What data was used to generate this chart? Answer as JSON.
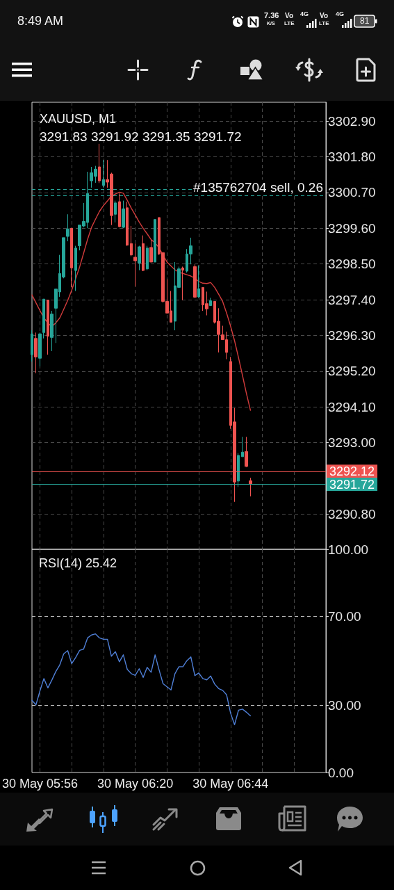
{
  "chart_data": [
    {
      "type": "candlestick",
      "title": "XAUUSD, M1",
      "subtitle": "3291.83 3291.92 3291.35 3291.72",
      "categories": [
        null,
        null,
        null,
        null,
        null,
        null,
        null,
        null,
        null,
        null,
        null,
        null,
        null,
        null,
        null,
        null,
        null,
        null,
        null,
        null,
        null,
        null,
        null,
        null,
        null,
        null,
        null,
        null,
        null,
        null,
        null,
        null,
        null,
        null,
        null,
        null,
        null,
        null,
        null,
        null,
        null,
        null,
        null,
        null,
        null,
        null,
        null,
        null,
        null,
        null,
        null,
        null,
        null,
        null,
        null,
        null,
        null,
        null,
        null,
        null,
        null,
        null,
        null,
        null,
        null,
        null,
        null,
        null,
        null,
        null,
        null,
        null,
        null,
        null,
        null
      ],
      "ohlc": [
        [
          3295.71,
          3296.46,
          3295.5,
          3296.35
        ],
        [
          3296.21,
          3296.39,
          3295.14,
          3295.64
        ],
        [
          3295.6,
          3296.39,
          3295.35,
          3296.35
        ],
        [
          3296.39,
          3297.42,
          3296.21,
          3297.42
        ],
        [
          3297.39,
          3297.39,
          3295.71,
          3296.28
        ],
        [
          3296.24,
          3297.06,
          3295.82,
          3296.96
        ],
        [
          3297.14,
          3297.73,
          3296.07,
          3297.73
        ],
        [
          3297.64,
          3298.78,
          3297.49,
          3298.21
        ],
        [
          3298.1,
          3299.31,
          3298.06,
          3299.31
        ],
        [
          3299.35,
          3300.03,
          3299.2,
          3299.58
        ],
        [
          3299.6,
          3299.6,
          3297.78,
          3298.38
        ],
        [
          3298.3,
          3299.06,
          3297.67,
          3298.99
        ],
        [
          3299.06,
          3299.7,
          3298.92,
          3299.7
        ],
        [
          3299.67,
          3300.38,
          3299.63,
          3299.81
        ],
        [
          3299.78,
          3301.34,
          3299.6,
          3300.67
        ],
        [
          3301.06,
          3301.49,
          3300.85,
          3301.31
        ],
        [
          3301.2,
          3301.52,
          3301.0,
          3301.42
        ],
        [
          3301.49,
          3302.2,
          3300.99,
          3301.06
        ],
        [
          3300.92,
          3301.7,
          3300.85,
          3301.1
        ],
        [
          3301.1,
          3301.7,
          3300.85,
          3301.02
        ],
        [
          3301.27,
          3301.31,
          3299.7,
          3299.99
        ],
        [
          3300.03,
          3300.45,
          3299.78,
          3300.38
        ],
        [
          3300.42,
          3300.67,
          3299.63,
          3299.65
        ],
        [
          3299.63,
          3300.45,
          3299.6,
          3300.2
        ],
        [
          3300.23,
          3300.42,
          3299.06,
          3299.08
        ],
        [
          3299.13,
          3299.67,
          3298.74,
          3298.78
        ],
        [
          3298.71,
          3299.13,
          3297.81,
          3298.6
        ],
        [
          3298.53,
          3299.06,
          3298.31,
          3299.03
        ],
        [
          3299.13,
          3299.38,
          3298.28,
          3298.3
        ],
        [
          3298.35,
          3299.06,
          3298.31,
          3298.99
        ],
        [
          3299.01,
          3299.24,
          3298.56,
          3298.56
        ],
        [
          3298.56,
          3299.87,
          3298.56,
          3299.87
        ],
        [
          3299.93,
          3299.93,
          3298.78,
          3298.81
        ],
        [
          3298.85,
          3298.85,
          3297.31,
          3297.35
        ],
        [
          3297.35,
          3298.03,
          3296.99,
          3296.99
        ],
        [
          3297.06,
          3297.67,
          3296.71,
          3296.71
        ],
        [
          3296.74,
          3298.56,
          3296.46,
          3297.83
        ],
        [
          3297.78,
          3298.42,
          3297.78,
          3298.35
        ],
        [
          3298.38,
          3298.42,
          3297.39,
          3298.31
        ],
        [
          3298.28,
          3298.96,
          3298.24,
          3298.81
        ],
        [
          3298.81,
          3299.31,
          3298.49,
          3299.06
        ],
        [
          3298.42,
          3298.49,
          3297.46,
          3297.48
        ],
        [
          3297.49,
          3298.46,
          3297.46,
          3297.74
        ],
        [
          3297.78,
          3297.78,
          3297.06,
          3297.24
        ],
        [
          3297.28,
          3297.65,
          3296.92,
          3297.12
        ],
        [
          3297.22,
          3297.46,
          3297.21,
          3297.37
        ],
        [
          3297.35,
          3297.35,
          3296.67,
          3296.71
        ],
        [
          3296.74,
          3297.14,
          3295.78,
          3296.33
        ],
        [
          3296.32,
          3296.6,
          3296.17,
          3296.17
        ],
        [
          3296.17,
          3296.42,
          3295.57,
          3295.78
        ],
        [
          3295.5,
          3295.64,
          3293.43,
          3293.53
        ],
        [
          3293.64,
          3294.07,
          3291.18,
          3291.79
        ],
        [
          3291.82,
          3292.68,
          3291.64,
          3292.61
        ],
        [
          3292.57,
          3293.18,
          3292.57,
          3292.71
        ],
        [
          3292.73,
          3293.18,
          3292.25,
          3292.27
        ],
        [
          3291.83,
          3291.92,
          3291.35,
          3291.72
        ],
        null,
        null,
        null,
        null,
        null,
        null,
        null,
        null,
        null,
        null,
        null,
        null,
        null,
        null,
        null,
        null,
        null,
        null,
        null
      ],
      "colors": [
        "#26a69a",
        "#ef5350",
        "#26a69a",
        "#26a69a",
        "#ef5350",
        "#26a69a",
        "#26a69a",
        "#26a69a",
        "#26a69a",
        "#26a69a",
        "#ef5350",
        "#26a69a",
        "#26a69a",
        "#26a69a",
        "#26a69a",
        "#26a69a",
        "#26a69a",
        "#ef5350",
        "#26a69a",
        "#ef5350",
        "#ef5350",
        "#26a69a",
        "#ef5350",
        "#26a69a",
        "#ef5350",
        "#ef5350",
        "#ef5350",
        "#26a69a",
        "#ef5350",
        "#26a69a",
        "#ef5350",
        "#26a69a",
        "#ef5350",
        "#ef5350",
        "#ef5350",
        "#ef5350",
        "#26a69a",
        "#26a69a",
        "#ef5350",
        "#26a69a",
        "#26a69a",
        "#ef5350",
        "#26a69a",
        "#ef5350",
        "#ef5350",
        "#26a69a",
        "#ef5350",
        "#ef5350",
        "#ef5350",
        "#ef5350",
        "#ef5350",
        "#ef5350",
        "#26a69a",
        "#26a69a",
        "#ef5350",
        "#ef5350",
        null,
        null,
        null,
        null,
        null,
        null,
        null,
        null,
        null,
        null,
        null,
        null,
        null,
        null,
        null,
        null,
        null,
        null,
        null
      ],
      "series": [
        {
          "type": "line",
          "color": "#d13b3b",
          "values": [
            3297.55,
            3297.31,
            3297.07,
            3296.84,
            3296.69,
            3296.57,
            3296.69,
            3296.84,
            3297.11,
            3297.38,
            3297.69,
            3298.05,
            3298.41,
            3298.83,
            3299.26,
            3299.63,
            3299.88,
            3300.12,
            3300.3,
            3300.44,
            3300.59,
            3300.65,
            3300.71,
            3300.68,
            3300.46,
            3300.22,
            3300.01,
            3299.79,
            3299.6,
            3299.43,
            3299.25,
            3299.15,
            3299.0,
            3298.77,
            3298.56,
            3298.44,
            3298.32,
            3298.25,
            3298.21,
            3298.17,
            3298.13,
            3298.07,
            3297.96,
            3297.91,
            3297.9,
            3297.93,
            3297.78,
            3297.57,
            3297.35,
            3296.99,
            3296.59,
            3296.14,
            3295.62,
            3295.07,
            3294.51,
            3294.0,
            null,
            null,
            null,
            null,
            null,
            null,
            null,
            null,
            null,
            null,
            null,
            null,
            null,
            null,
            null,
            null,
            null,
            null,
            null
          ]
        }
      ],
      "ylim": [
        3289.72,
        3303.48
      ],
      "yticks": [
        {
          "value": 3302.9,
          "label": "3302.90"
        },
        {
          "value": 3301.8,
          "label": "3301.80"
        },
        {
          "value": 3300.7,
          "label": "3300.70"
        },
        {
          "value": 3299.6,
          "label": "3299.60"
        },
        {
          "value": 3298.5,
          "label": "3298.50"
        },
        {
          "value": 3297.4,
          "label": "3297.40"
        },
        {
          "value": 3296.3,
          "label": "3296.30"
        },
        {
          "value": 3295.2,
          "label": "3295.20"
        },
        {
          "value": 3294.1,
          "label": "3294.10"
        },
        {
          "value": 3293,
          "label": "3293.00"
        },
        {
          "value": 3290.8,
          "label": "3290.80"
        }
      ],
      "ref_lines": [
        {
          "axis": "y",
          "value": 3300.8,
          "color": "#26a69a",
          "line_style": "dashed"
        },
        {
          "axis": "y",
          "value": 3300.6,
          "label": "#135762704 sell, 0.26",
          "color": "#26a69a",
          "line_style": "dashed"
        },
        {
          "axis": "y",
          "value": 3292.12,
          "label": "3292.12",
          "color": "#ef5350",
          "line_style": "solid"
        },
        {
          "axis": "y",
          "value": 3291.72,
          "label": "3291.72",
          "color": "#26a69a",
          "line_style": "solid"
        }
      ],
      "grid": true,
      "marker": "none",
      "tick_labels": "y",
      "annotations": [
        "8:49 AM",
        "7.36",
        "K/S",
        "Vo",
        "LTE",
        "4G",
        "Vo",
        "LTE",
        "4G",
        "81"
      ]
    },
    {
      "type": "line",
      "title": "RSI(14) 25.42",
      "categories": [
        null,
        null,
        "30 May 05:56",
        null,
        null,
        null,
        null,
        null,
        null,
        null,
        null,
        null,
        null,
        null,
        null,
        null,
        null,
        null,
        null,
        null,
        null,
        null,
        null,
        null,
        null,
        null,
        "30 May 06:20",
        null,
        null,
        null,
        null,
        null,
        null,
        null,
        null,
        null,
        null,
        null,
        null,
        null,
        null,
        null,
        null,
        null,
        null,
        null,
        null,
        null,
        null,
        null,
        "30 May 06:44",
        null,
        null,
        null,
        null,
        null,
        null,
        null,
        null,
        null,
        null,
        null,
        null,
        null,
        null,
        null,
        null,
        null,
        null,
        null,
        null,
        null,
        null,
        null,
        null
      ],
      "values": [
        32.3,
        30.3,
        36.5,
        42.1,
        37.9,
        41.4,
        45.2,
        48.2,
        53.2,
        54.6,
        48.8,
        51.5,
        54.7,
        55.3,
        60.3,
        61.6,
        62.1,
        60.3,
        59.7,
        59.7,
        52.1,
        54.1,
        49.6,
        52.7,
        46.2,
        44.3,
        43.5,
        46.5,
        42.6,
        47.1,
        44.9,
        52.7,
        46.0,
        39.8,
        38.4,
        37.0,
        44.3,
        47.4,
        47.4,
        50.1,
        51.8,
        43.4,
        44.6,
        42.1,
        41.5,
        43.2,
        39.6,
        37.6,
        36.8,
        34.8,
        26.6,
        21.4,
        27.9,
        28.4,
        27.0,
        25.42,
        null,
        null,
        null,
        null,
        null,
        null,
        null,
        null,
        null,
        null,
        null,
        null,
        null,
        null,
        null,
        null,
        null,
        null,
        null
      ],
      "color": "#4f7fd6",
      "ylim": [
        0,
        100
      ],
      "yticks": [
        {
          "value": 100,
          "label": "100.00"
        },
        {
          "value": 70,
          "label": "70.00"
        },
        {
          "value": 30,
          "label": "30.00"
        },
        {
          "value": 0,
          "label": "0.00"
        }
      ],
      "ref_lines": [
        {
          "axis": "y",
          "value": 70,
          "color": "#bdbdbd",
          "line_style": "dashed"
        },
        {
          "axis": "y",
          "value": 30,
          "color": "#bdbdbd",
          "line_style": "dashed"
        }
      ],
      "grid": "x",
      "marker": "none"
    }
  ]
}
